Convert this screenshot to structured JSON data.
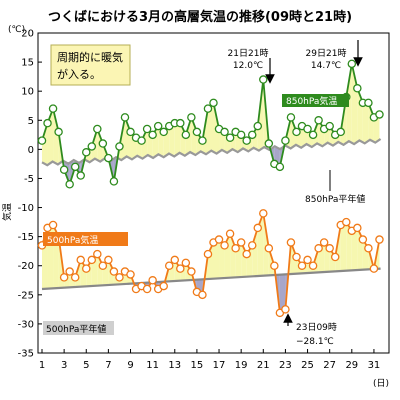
{
  "chart_data": {
    "type": "line",
    "title": "つくばにおける3月の高層気温の推移(09時と21時)",
    "ylabel": "気温",
    "yunit": "(℃)",
    "xunit": "(日)",
    "ylim": [
      -35,
      20
    ],
    "yticks": [
      20,
      15,
      10,
      5,
      0,
      -5,
      -10,
      -15,
      -20,
      -25,
      -30,
      -35
    ],
    "xlim": [
      1,
      32
    ],
    "xticks": [
      1,
      3,
      5,
      7,
      9,
      11,
      13,
      15,
      17,
      19,
      21,
      23,
      25,
      27,
      29,
      31
    ],
    "grid": false,
    "series": [
      {
        "name": "850hPa気温",
        "color": "#2e8b1e",
        "x": [
          1.0,
          1.5,
          2.0,
          2.5,
          3.0,
          3.5,
          4.0,
          4.5,
          5.0,
          5.5,
          6.0,
          6.5,
          7.0,
          7.5,
          8.0,
          8.5,
          9.0,
          9.5,
          10.0,
          10.5,
          11.0,
          11.5,
          12.0,
          12.5,
          13.0,
          13.5,
          14.0,
          14.5,
          15.0,
          15.5,
          16.0,
          16.5,
          17.0,
          17.5,
          18.0,
          18.5,
          19.0,
          19.5,
          20.0,
          20.5,
          21.0,
          21.5,
          22.0,
          22.5,
          23.0,
          23.5,
          24.0,
          24.5,
          25.0,
          25.5,
          26.0,
          26.5,
          27.0,
          27.5,
          28.0,
          28.5,
          29.0,
          29.5,
          30.0,
          30.5,
          31.0,
          31.5
        ],
        "values": [
          1.5,
          4.5,
          7.0,
          3.0,
          -3.5,
          -6.0,
          -3.0,
          -4.5,
          -0.5,
          0.5,
          3.5,
          1.0,
          -1.5,
          -5.5,
          0.5,
          5.5,
          3.0,
          2.0,
          1.5,
          3.5,
          2.5,
          4.0,
          3.0,
          4.0,
          4.5,
          4.5,
          2.5,
          5.5,
          3.0,
          1.5,
          7.0,
          8.0,
          3.5,
          3.0,
          2.0,
          3.0,
          2.5,
          1.5,
          2.5,
          4.0,
          12.0,
          1.0,
          -2.5,
          -3.0,
          1.5,
          5.5,
          3.0,
          4.0,
          3.5,
          2.5,
          5.0,
          3.5,
          4.0,
          2.5,
          3.0,
          9.0,
          14.7,
          10.5,
          8.0,
          8.0,
          5.5,
          6.0
        ]
      },
      {
        "name": "500hPa気温",
        "color": "#f07a18",
        "x": [
          1.0,
          1.5,
          2.0,
          2.5,
          3.0,
          3.5,
          4.0,
          4.5,
          5.0,
          5.5,
          6.0,
          6.5,
          7.0,
          7.5,
          8.0,
          8.5,
          9.0,
          9.5,
          10.0,
          10.5,
          11.0,
          11.5,
          12.0,
          12.5,
          13.0,
          13.5,
          14.0,
          14.5,
          15.0,
          15.5,
          16.0,
          16.5,
          17.0,
          17.5,
          18.0,
          18.5,
          19.0,
          19.5,
          20.0,
          20.5,
          21.0,
          21.5,
          22.0,
          22.5,
          23.0,
          23.5,
          24.0,
          24.5,
          25.0,
          25.5,
          26.0,
          26.5,
          27.0,
          27.5,
          28.0,
          28.5,
          29.0,
          29.5,
          30.0,
          30.5,
          31.0,
          31.5
        ],
        "values": [
          -16.5,
          -13.5,
          -13.0,
          -15.0,
          -22.0,
          -21.0,
          -22.0,
          -19.0,
          -20.5,
          -19.0,
          -18.0,
          -20.0,
          -19.0,
          -21.0,
          -22.0,
          -21.0,
          -21.5,
          -24.0,
          -23.5,
          -24.0,
          -22.5,
          -24.0,
          -23.5,
          -20.0,
          -19.0,
          -20.5,
          -19.5,
          -21.0,
          -24.5,
          -25.0,
          -18.0,
          -16.0,
          -15.5,
          -16.5,
          -14.5,
          -17.0,
          -16.0,
          -18.0,
          -16.5,
          -13.5,
          -11.0,
          -17.0,
          -20.0,
          -28.1,
          -27.5,
          -16.0,
          -18.5,
          -20.0,
          -19.0,
          -20.0,
          -17.0,
          -16.0,
          -17.0,
          -18.5,
          -13.0,
          -12.5,
          -14.0,
          -13.5,
          -15.5,
          -17.0,
          -20.5,
          -15.5
        ]
      }
    ],
    "normals": [
      {
        "name": "850hPa平年値",
        "color": "#999999",
        "x": [
          1,
          31.6
        ],
        "values": [
          -2.5,
          1.5
        ]
      },
      {
        "name": "500hPa平年値",
        "color": "#888888",
        "x": [
          1,
          31.6
        ],
        "values": [
          -24.0,
          -20.5
        ]
      }
    ],
    "annotations": [
      {
        "text": "周期的に暖気が入る。",
        "lines": [
          "周期的に暖気",
          "が入る。"
        ]
      },
      {
        "lines": [
          "21日21時",
          "12.0℃"
        ]
      },
      {
        "lines": [
          "29日21時",
          "14.7℃"
        ]
      },
      {
        "lines": [
          "23日09時",
          "−28.1℃"
        ]
      }
    ]
  }
}
